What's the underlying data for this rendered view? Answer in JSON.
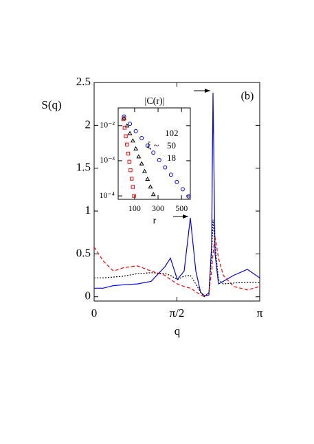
{
  "chart_data": [
    {
      "type": "line",
      "xlabel": "q",
      "ylabel": "S(q)",
      "annotations": [
        "(b)"
      ],
      "x": [
        0,
        0.169,
        0.365,
        0.561,
        0.821,
        1.082,
        1.343,
        1.447,
        1.578,
        1.708,
        1.825,
        1.929,
        2.02,
        2.099,
        2.177,
        2.229,
        2.255,
        2.294,
        2.359,
        2.451,
        2.646,
        2.907,
        3.1416
      ],
      "series": [
        {
          "color": "#0000ff",
          "style": "solid",
          "values": [
            0.1,
            0.1,
            0.13,
            0.14,
            0.15,
            0.18,
            0.35,
            0.45,
            0.2,
            0.3,
            0.92,
            0.3,
            0.05,
            0.01,
            0.02,
            0.6,
            2.38,
            0.5,
            0.15,
            0.18,
            0.25,
            0.32,
            0.22
          ]
        },
        {
          "color": "#ff0000",
          "style": "dashed",
          "values": [
            0.58,
            0.42,
            0.3,
            0.34,
            0.36,
            0.3,
            0.25,
            0.2,
            0.15,
            0.12,
            0.1,
            0.06,
            0.02,
            0,
            0.05,
            0.3,
            0.5,
            0.7,
            0.45,
            0.25,
            0.12,
            0.08,
            0.12
          ]
        },
        {
          "color": "#000000",
          "style": "dotted",
          "values": [
            0.22,
            0.22,
            0.23,
            0.24,
            0.27,
            0.28,
            0.27,
            0.25,
            0.2,
            0.24,
            0.25,
            0.15,
            0.05,
            0,
            0.05,
            0.5,
            0.9,
            0.6,
            0.2,
            0.15,
            0.16,
            0.17,
            0.17
          ]
        }
      ],
      "xlim": [
        0,
        3.1416
      ],
      "ylim": [
        -0.05,
        2.5
      ],
      "xticks": [
        0,
        {
          "value": 1.5708,
          "label": "π/2"
        },
        {
          "value": 3.1416,
          "label": "π"
        }
      ],
      "yticks": [
        0,
        0.5,
        1,
        1.5,
        2,
        2.5
      ]
    },
    {
      "type": "scatter",
      "title": "|C(r)|",
      "xlabel": "r",
      "log_y": true,
      "annotations": [
        "102",
        "ξ ~",
        "50",
        "18"
      ],
      "series": [
        {
          "color": "#0000ff",
          "marker": "circle",
          "x": [
            10,
            60,
            110,
            160,
            210,
            260,
            310,
            360,
            410,
            460,
            510,
            560
          ],
          "values": [
            0.0182,
            0.0113,
            0.007,
            0.0044,
            0.0027,
            0.0017,
            0.00105,
            0.00065,
            0.0004,
            0.00025,
            0.000155,
            9.7e-05
          ]
        },
        {
          "color": "#000000",
          "marker": "triangle",
          "x": [
            10,
            35,
            60,
            85,
            110,
            135,
            160,
            185,
            210,
            235,
            260
          ],
          "values": [
            0.0164,
            0.0099,
            0.006,
            0.0037,
            0.0022,
            0.0013,
            0.00082,
            0.0005,
            0.0003,
            0.00018,
            0.00011
          ]
        },
        {
          "color": "#ff0000",
          "marker": "square",
          "x": [
            5,
            15,
            25,
            35,
            45,
            55,
            65,
            75,
            85,
            95
          ],
          "values": [
            0.0152,
            0.0087,
            0.005,
            0.0029,
            0.0016,
            0.00094,
            0.00054,
            0.00031,
            0.00018,
            0.0001
          ]
        }
      ],
      "xlim": [
        -40,
        575
      ],
      "ylim": [
        8e-05,
        0.032
      ],
      "xticks": [
        100,
        300,
        500
      ],
      "yticks": [
        {
          "value": 0.01,
          "label": "10⁻²"
        },
        {
          "value": 0.001,
          "label": "10⁻³"
        },
        {
          "value": 0.0001,
          "label": "10⁻⁴"
        }
      ]
    }
  ]
}
